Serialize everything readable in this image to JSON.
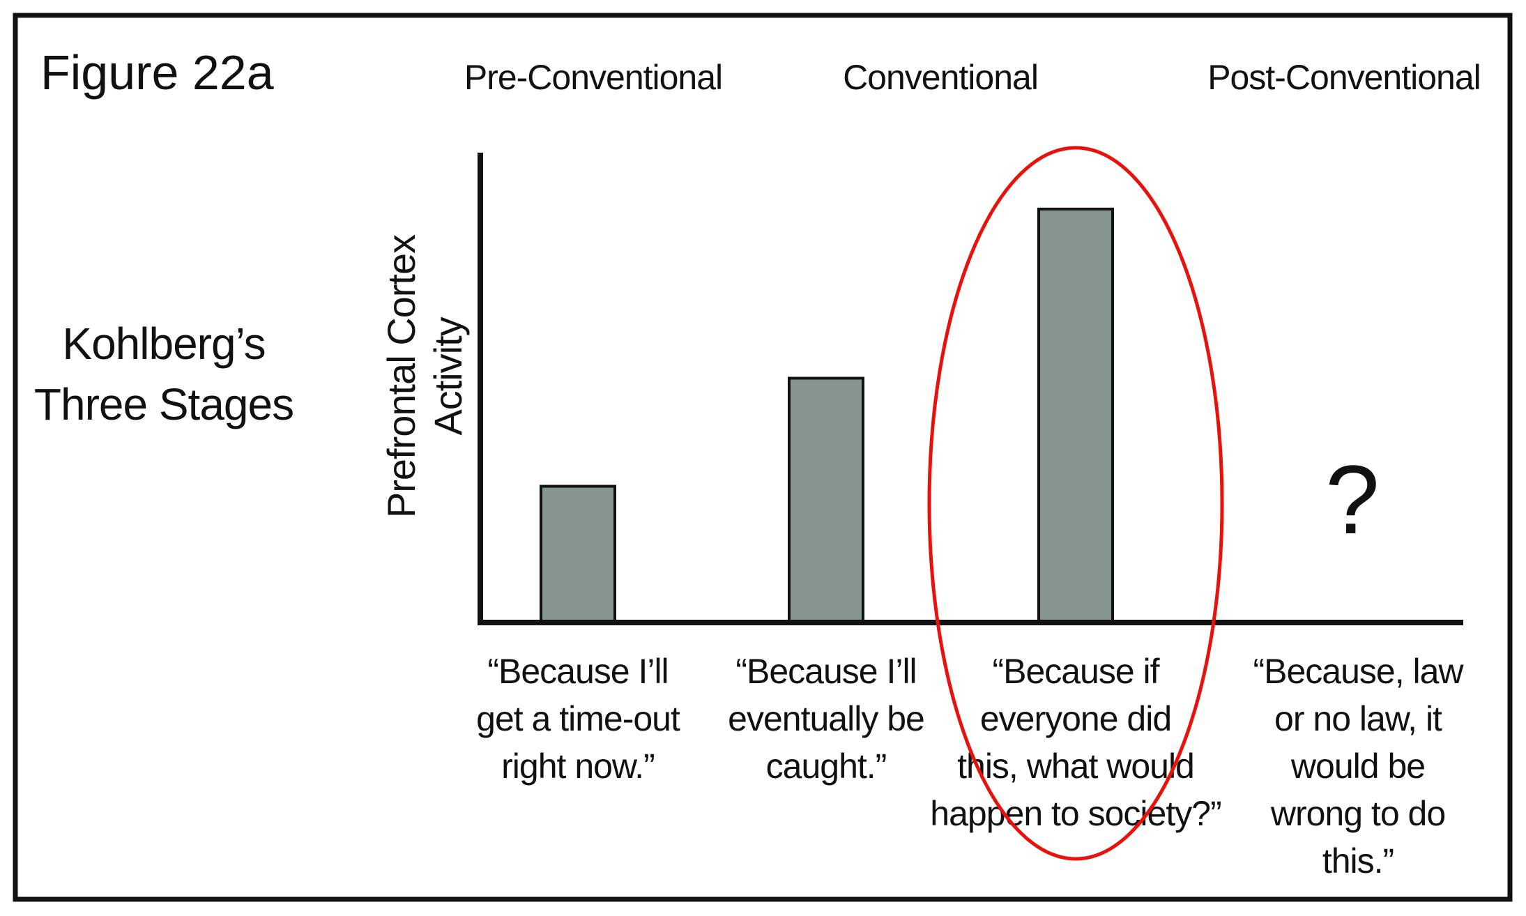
{
  "figure_label": "Figure 22a",
  "side_title": [
    "Kohlberg’s",
    "Three Stages"
  ],
  "stage_headers": [
    "Pre-Conventional",
    "Conventional",
    "Post-Conventional"
  ],
  "unknown_marker": "?",
  "colors": {
    "bar": "#86968f",
    "highlight": "#e8120c",
    "axis": "#111111"
  },
  "chart_data": {
    "type": "bar",
    "title": "Figure 22a",
    "xlabel": "",
    "ylabel": [
      "Prefrontal Cortex",
      "Activity"
    ],
    "ylim": [
      0,
      100
    ],
    "grid": false,
    "categories": [
      [
        "“Because I’ll",
        "get a time-out",
        "right now.”"
      ],
      [
        "“Because I’ll",
        "eventually be",
        "caught.”"
      ],
      [
        "“Because if",
        "everyone did",
        "this, what would",
        "happen to society?”"
      ],
      [
        "“Because, law",
        "or no law, it",
        "would be",
        "wrong to do",
        "this.”"
      ]
    ],
    "values": [
      29,
      52,
      88,
      null
    ],
    "highlighted_index": 2
  }
}
